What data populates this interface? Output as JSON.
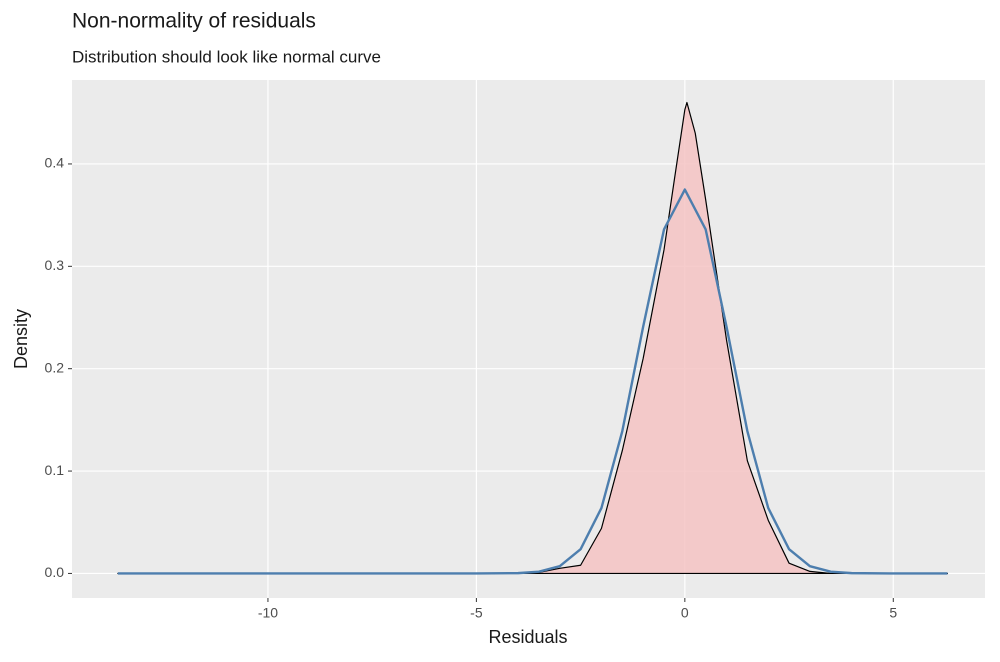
{
  "chart_data": {
    "type": "density",
    "title": "Non-normality of residuals",
    "subtitle": "Distribution should look like normal curve",
    "xlabel": "Residuals",
    "ylabel": "Density",
    "xlim": [
      -14.7,
      7.2
    ],
    "ylim": [
      -0.024,
      0.482
    ],
    "xticks": [
      -10,
      -5,
      0,
      5
    ],
    "yticks": [
      {
        "value": 0,
        "label": "0.0"
      },
      0.1,
      0.2,
      0.3,
      0.4
    ],
    "grid": true,
    "series": [
      {
        "color": "#000000",
        "fill": "#f4c3c3",
        "x": [
          -13.6,
          -4,
          -3.5,
          -3,
          -2.5,
          -2,
          -1.5,
          -1,
          -0.5,
          -0.25,
          0,
          0.05,
          0.25,
          0.5,
          1,
          1.5,
          2,
          2.5,
          3,
          3.5,
          6.3
        ],
        "values": [
          0,
          0,
          0.001,
          0.005,
          0.008,
          0.044,
          0.12,
          0.21,
          0.316,
          0.385,
          0.453,
          0.46,
          0.43,
          0.365,
          0.228,
          0.11,
          0.052,
          0.01,
          0.002,
          0,
          0
        ]
      },
      {
        "color": "#4d7eae",
        "x": [
          -13.6,
          -5,
          -4,
          -3.5,
          -3,
          -2.5,
          -2,
          -1.5,
          -1,
          -0.5,
          0,
          0.5,
          1,
          1.5,
          2,
          2.5,
          3,
          3.5,
          4,
          5,
          6.3
        ],
        "values": [
          0,
          0,
          0.0003,
          0.0017,
          0.0071,
          0.0237,
          0.064,
          0.139,
          0.241,
          0.336,
          0.375,
          0.336,
          0.241,
          0.139,
          0.064,
          0.0237,
          0.0071,
          0.0017,
          0.0003,
          0,
          0
        ]
      }
    ]
  }
}
